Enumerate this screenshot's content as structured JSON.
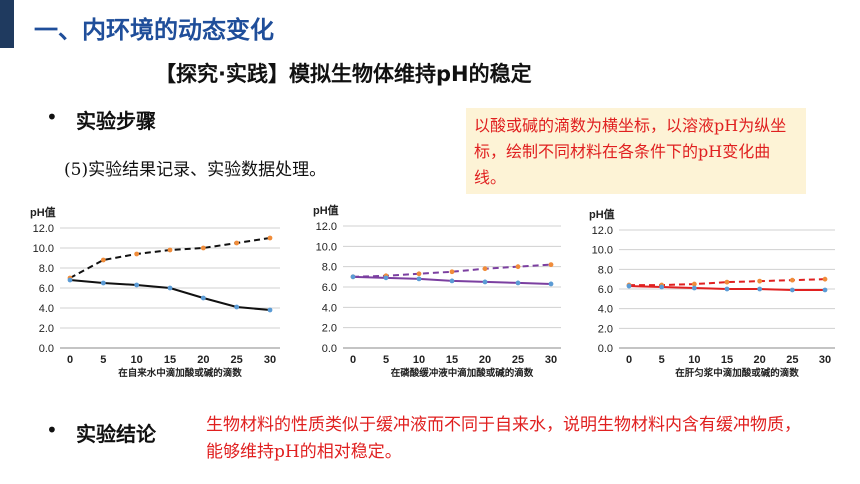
{
  "slide": {
    "section_title": "一、内环境的动态变化",
    "topic_title": "【探究·实践】模拟生物体维持pH的稳定",
    "bullet_char": "•",
    "steps_label": "实验步骤",
    "step_text": "(5)实验结果记录、实验数据处理。",
    "note_text": "以酸或碱的滴数为横坐标，以溶液pH为纵坐标，绘制不同材料在各条件下的pH变化曲线。",
    "conclusion_label": "实验结论",
    "conclusion_text": "生物材料的性质类似于缓冲液而不同于自来水，说明生物材料内含有缓冲物质，能够维持pH的相对稳定。"
  },
  "chart_data": [
    {
      "type": "line",
      "ylabel": "pH值",
      "xlabel": "在自来水中滴加酸或碱的滴数",
      "x": [
        0,
        5,
        10,
        15,
        20,
        25,
        30
      ],
      "ylim": [
        0,
        12
      ],
      "yticks": [
        "0.0",
        "2.0",
        "4.0",
        "6.0",
        "8.0",
        "10.0",
        "12.0"
      ],
      "grid": true,
      "series": [
        {
          "style": "dashed",
          "color": "#111111",
          "marker_color": "#f08c3a",
          "values": [
            7.0,
            8.8,
            9.4,
            9.8,
            10.0,
            10.5,
            11.0
          ]
        },
        {
          "style": "solid",
          "color": "#111111",
          "marker_color": "#5b9bd5",
          "values": [
            6.8,
            6.5,
            6.3,
            6.0,
            5.0,
            4.1,
            3.8
          ]
        }
      ]
    },
    {
      "type": "line",
      "ylabel": "pH值",
      "xlabel": "在磷酸缓冲液中滴加酸或碱的滴数",
      "x": [
        0,
        5,
        10,
        15,
        20,
        25,
        30
      ],
      "ylim": [
        0,
        12
      ],
      "yticks": [
        "0.0",
        "2.0",
        "4.0",
        "6.0",
        "8.0",
        "10.0",
        "12.0"
      ],
      "grid": true,
      "series": [
        {
          "style": "dashed",
          "color": "#7b3fa0",
          "marker_color": "#f08c3a",
          "values": [
            7.0,
            7.1,
            7.3,
            7.5,
            7.8,
            8.0,
            8.2
          ]
        },
        {
          "style": "solid",
          "color": "#7b3fa0",
          "marker_color": "#5b9bd5",
          "values": [
            7.0,
            6.9,
            6.8,
            6.6,
            6.5,
            6.4,
            6.3
          ]
        }
      ]
    },
    {
      "type": "line",
      "ylabel": "pH值",
      "xlabel": "在肝匀浆中滴加酸或碱的滴数",
      "x": [
        0,
        5,
        10,
        15,
        20,
        25,
        30
      ],
      "ylim": [
        0,
        12
      ],
      "yticks": [
        "0.0",
        "2.0",
        "4.0",
        "6.0",
        "8.0",
        "10.0",
        "12.0"
      ],
      "grid": true,
      "series": [
        {
          "style": "dashed",
          "color": "#e02020",
          "marker_color": "#f08c3a",
          "values": [
            6.4,
            6.4,
            6.5,
            6.7,
            6.8,
            6.9,
            7.0
          ]
        },
        {
          "style": "solid",
          "color": "#e02020",
          "marker_color": "#5b9bd5",
          "values": [
            6.3,
            6.2,
            6.1,
            6.0,
            6.0,
            5.9,
            5.9
          ]
        }
      ]
    }
  ]
}
